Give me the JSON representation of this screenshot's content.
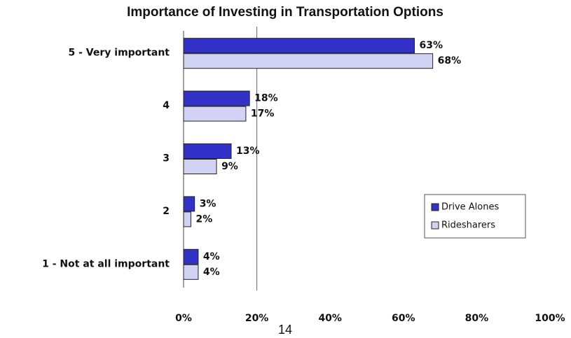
{
  "chart_data": {
    "type": "hbar",
    "title": "Importance of Investing in Transportation Options",
    "categories": [
      "5 - Very important",
      "4",
      "3",
      "2",
      "1 - Not at all important"
    ],
    "series": [
      {
        "name": "Drive Alones",
        "color": "#3232c8",
        "values": [
          63,
          18,
          13,
          3,
          4
        ],
        "value_labels": [
          "63%",
          "18%",
          "13%",
          "3%",
          "4%"
        ]
      },
      {
        "name": "Ridesharers",
        "color": "#d2d2f5",
        "values": [
          68,
          17,
          9,
          2,
          4
        ],
        "value_labels": [
          "68%",
          "17%",
          "9%",
          "2%",
          "4%"
        ]
      }
    ],
    "xlim": [
      0,
      100
    ],
    "xticks": [
      {
        "value": 0,
        "label": "0%"
      },
      {
        "value": 20,
        "label": "20%"
      },
      {
        "value": 40,
        "label": "40%"
      },
      {
        "value": 60,
        "label": "60%"
      },
      {
        "value": 80,
        "label": "80%"
      },
      {
        "value": 100,
        "label": "100%"
      }
    ],
    "reference_line": 20,
    "legend": "lower right"
  },
  "page_number": "14"
}
